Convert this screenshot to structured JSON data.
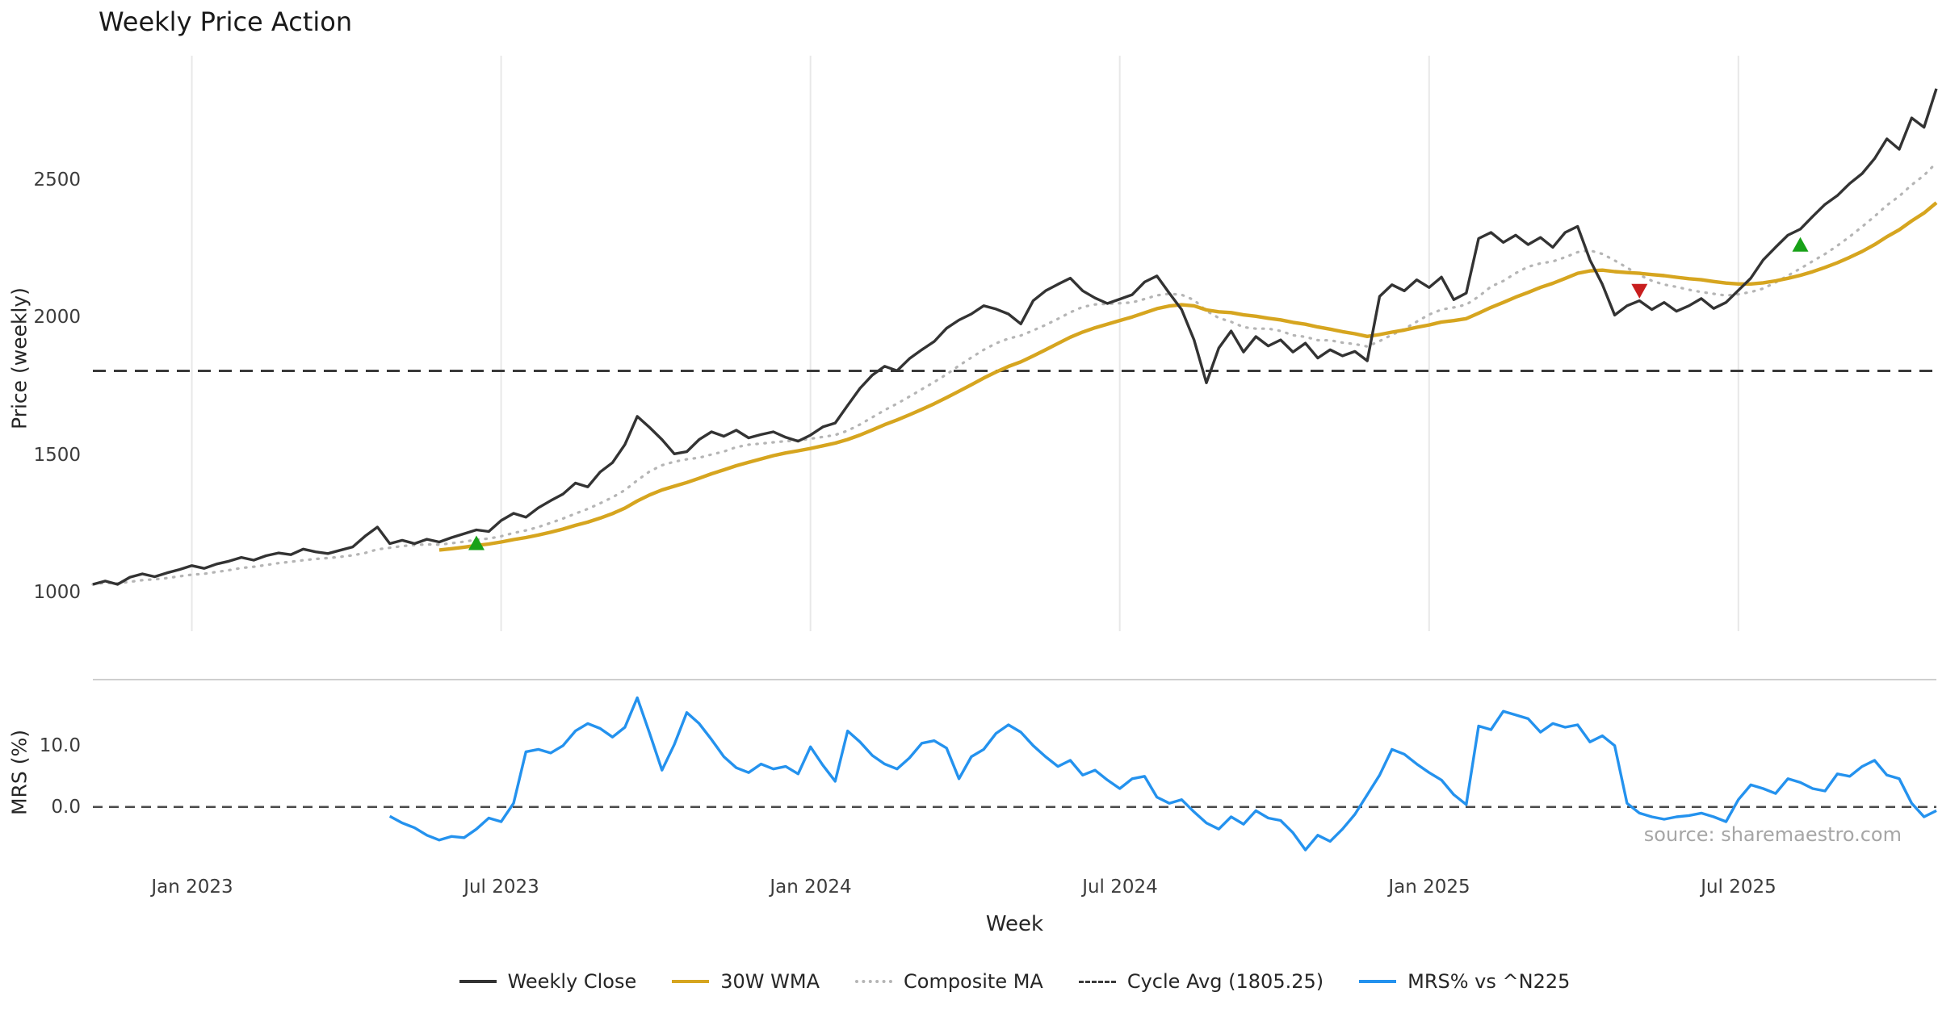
{
  "title": "Weekly Price Action",
  "axes": {
    "price_ylabel": "Price (weekly)",
    "mrs_ylabel": "MRS (%)",
    "xlabel": "Week"
  },
  "source_text": "source: sharemaestro.com",
  "colors": {
    "weekly_close": "#333333",
    "wma30": "#d6a51f",
    "composite_ma": "#b5b5b5",
    "cycle_avg": "#3a3a3a",
    "mrs": "#2492ee",
    "buy_marker": "#18a118",
    "sell_marker": "#c81e1e",
    "grid": "#e8e8e8",
    "separator": "#cfcfcf"
  },
  "legend": {
    "items": [
      {
        "label": "Weekly Close",
        "color": "#333333",
        "style": "solid"
      },
      {
        "label": "30W WMA",
        "color": "#d6a51f",
        "style": "solid"
      },
      {
        "label": "Composite MA",
        "color": "#b5b5b5",
        "style": "dotted"
      },
      {
        "label": "Cycle Avg (1805.25)",
        "color": "#3a3a3a",
        "style": "dashed"
      },
      {
        "label": "MRS% vs ^N225",
        "color": "#2492ee",
        "style": "solid"
      }
    ]
  },
  "chart_data": [
    {
      "type": "line",
      "panel": "price",
      "title": "Weekly Price Action",
      "ylabel": "Price (weekly)",
      "xlabel": "Week",
      "n_points": 150,
      "x_unit": "week",
      "ylim": [
        860,
        2950
      ],
      "grid": "vertical-only",
      "yticks": [
        {
          "v": 1000,
          "label": "1000"
        },
        {
          "v": 1500,
          "label": "1500"
        },
        {
          "v": 2000,
          "label": "2000"
        },
        {
          "v": 2500,
          "label": "2500"
        }
      ],
      "xticks": [
        {
          "i": 8,
          "label": "Jan 2023"
        },
        {
          "i": 33,
          "label": "Jul 2023"
        },
        {
          "i": 58,
          "label": "Jan 2024"
        },
        {
          "i": 83,
          "label": "Jul 2024"
        },
        {
          "i": 108,
          "label": "Jan 2025"
        },
        {
          "i": 133,
          "label": "Jul 2025"
        }
      ],
      "cycle_avg": 1805.25,
      "series": [
        {
          "name": "Weekly Close",
          "color": "#333333",
          "style": "solid",
          "values": [
            1030,
            1042,
            1030,
            1056,
            1068,
            1058,
            1072,
            1084,
            1098,
            1088,
            1104,
            1114,
            1128,
            1118,
            1134,
            1144,
            1138,
            1158,
            1148,
            1142,
            1154,
            1166,
            1205,
            1238,
            1178,
            1190,
            1178,
            1194,
            1184,
            1200,
            1214,
            1228,
            1222,
            1262,
            1288,
            1274,
            1308,
            1334,
            1358,
            1398,
            1384,
            1438,
            1472,
            1538,
            1640,
            1600,
            1556,
            1504,
            1512,
            1556,
            1584,
            1568,
            1590,
            1562,
            1574,
            1584,
            1564,
            1550,
            1572,
            1602,
            1616,
            1680,
            1742,
            1790,
            1822,
            1806,
            1850,
            1882,
            1912,
            1960,
            1990,
            2012,
            2042,
            2030,
            2012,
            1976,
            2060,
            2096,
            2120,
            2142,
            2096,
            2070,
            2050,
            2066,
            2082,
            2128,
            2150,
            2088,
            2028,
            1918,
            1762,
            1888,
            1950,
            1874,
            1930,
            1896,
            1918,
            1874,
            1906,
            1852,
            1882,
            1860,
            1876,
            1842,
            2076,
            2118,
            2096,
            2136,
            2108,
            2146,
            2064,
            2088,
            2286,
            2308,
            2272,
            2298,
            2264,
            2290,
            2254,
            2308,
            2330,
            2208,
            2120,
            2008,
            2042,
            2060,
            2028,
            2054,
            2022,
            2042,
            2068,
            2032,
            2054,
            2098,
            2142,
            2208,
            2254,
            2298,
            2320,
            2366,
            2410,
            2442,
            2486,
            2522,
            2576,
            2648,
            2610,
            2724,
            2690,
            2830
          ]
        },
        {
          "name": "30W WMA",
          "color": "#d6a51f",
          "style": "solid",
          "derived": "weighted-moving-average-of-weekly-close",
          "window": 29
        },
        {
          "name": "Composite MA",
          "color": "#b5b5b5",
          "style": "dotted",
          "derived": "mean-of-short-smas-of-weekly-close",
          "windows": [
            5,
            10,
            20
          ]
        }
      ],
      "markers": [
        {
          "i": 31,
          "value": 1178,
          "shape": "triangle-up",
          "color": "#18a118",
          "signal": "buy"
        },
        {
          "i": 125,
          "value": 2098,
          "shape": "triangle-down",
          "color": "#c81e1e",
          "signal": "sell"
        },
        {
          "i": 138,
          "value": 2262,
          "shape": "triangle-up",
          "color": "#18a118",
          "signal": "buy"
        }
      ]
    },
    {
      "type": "line",
      "panel": "mrs",
      "ylabel": "MRS (%)",
      "ylim": [
        -9.5,
        20.5
      ],
      "zero_line": true,
      "yticks": [
        {
          "v": 0,
          "label": "0.0"
        },
        {
          "v": 10,
          "label": "10.0"
        }
      ],
      "series": [
        {
          "name": "MRS% vs ^N225",
          "color": "#2492ee",
          "style": "solid",
          "start_index": 24,
          "values": [
            -1.5,
            -2.6,
            -3.4,
            -4.6,
            -5.4,
            -4.8,
            -5.0,
            -3.6,
            -1.8,
            -2.4,
            0.6,
            9.0,
            9.4,
            8.8,
            10.0,
            12.4,
            13.6,
            12.8,
            11.4,
            13.0,
            17.8,
            12.0,
            6.0,
            10.2,
            15.4,
            13.6,
            11.0,
            8.2,
            6.4,
            5.6,
            7.0,
            6.2,
            6.6,
            5.4,
            9.8,
            6.8,
            4.2,
            12.4,
            10.6,
            8.4,
            7.0,
            6.2,
            8.0,
            10.4,
            10.8,
            9.6,
            4.6,
            8.2,
            9.4,
            12.0,
            13.4,
            12.2,
            10.0,
            8.2,
            6.6,
            7.6,
            5.2,
            6.0,
            4.4,
            3.0,
            4.6,
            5.0,
            1.6,
            0.6,
            1.2,
            -0.8,
            -2.6,
            -3.6,
            -1.6,
            -2.8,
            -0.6,
            -1.8,
            -2.2,
            -4.2,
            -7.0,
            -4.6,
            -5.6,
            -3.6,
            -1.2,
            2.0,
            5.2,
            9.4,
            8.6,
            7.0,
            5.6,
            4.4,
            2.0,
            0.4,
            13.2,
            12.6,
            15.6,
            15.0,
            14.4,
            12.2,
            13.6,
            13.0,
            13.4,
            10.6,
            11.6,
            10.0,
            0.6,
            -1.0,
            -1.6,
            -2.0,
            -1.6,
            -1.4,
            -1.0,
            -1.6,
            -2.4,
            1.2,
            3.6,
            3.0,
            2.2,
            4.6,
            4.0,
            3.0,
            2.6,
            5.4,
            5.0,
            6.6,
            7.6,
            5.2,
            4.6,
            0.6,
            -1.6,
            -0.6
          ]
        }
      ]
    }
  ]
}
